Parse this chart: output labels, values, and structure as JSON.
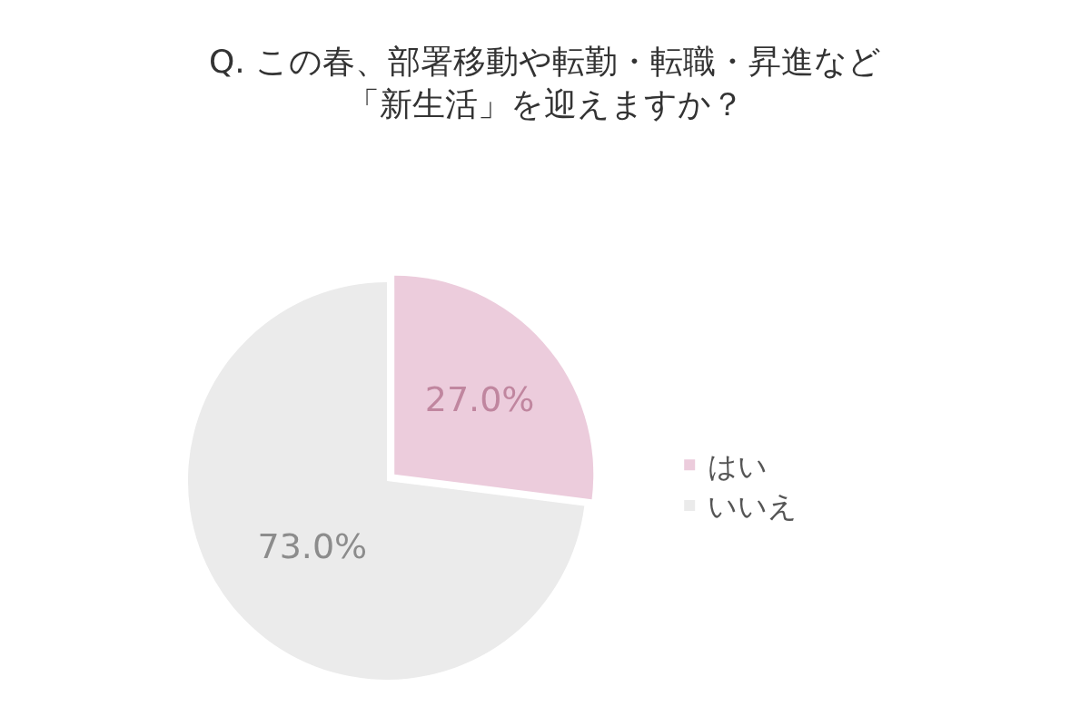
{
  "chart_data": {
    "type": "pie",
    "title": "Q. この春、部署移動や転勤・転職・昇進など",
    "subtitle": "「新生活」を迎えますか？",
    "categories": [
      "はい",
      "いいえ"
    ],
    "values": [
      27.0,
      73.0
    ],
    "colors": [
      "#ecccdc",
      "#ebebeb"
    ],
    "value_labels": [
      "27.0%",
      "73.0%"
    ],
    "legend": "right"
  }
}
